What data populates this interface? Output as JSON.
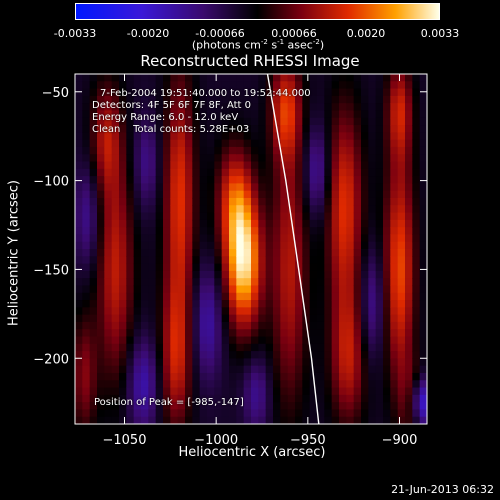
{
  "colorbar": {
    "ticks": [
      "-0.0033",
      "-0.0020",
      "-0.00066",
      "0.00066",
      "0.0020",
      "0.0033"
    ],
    "units_main": "(photons cm",
    "units_exp1": "-2",
    "units_s": " s",
    "units_exp2": "-1",
    "units_asec": " asec",
    "units_exp3": "-2",
    "units_close": ")"
  },
  "title": "Reconstructed RHESSI Image",
  "info": {
    "time": "7-Feb-2004 19:51:40.000 to 19:52:44.000",
    "detectors": "Detectors: 4F 5F 6F 7F 8F, Att 0",
    "energy": "Energy Range: 6.0 - 12.0 keV",
    "clean": "Clean    Total counts: 5.28E+03",
    "peak": "Position of Peak = [-985,-147]"
  },
  "footer": "21-Jun-2013 06:32",
  "chart_data": {
    "type": "heatmap",
    "title": "Reconstructed RHESSI Image",
    "xlabel": "Heliocentric X (arcsec)",
    "ylabel": "Heliocentric Y (arcsec)",
    "xlim": [
      -1077,
      -885
    ],
    "ylim": [
      -237,
      -40
    ],
    "xticks": [
      -1050,
      -1000,
      -950,
      -900
    ],
    "yticks": [
      -50,
      -100,
      -150,
      -200
    ],
    "colorbar_range": [
      -0.0033,
      0.0033
    ],
    "colormap": "blue-purple-black-red-yellow-white",
    "peak": {
      "x": -985,
      "y": -147
    },
    "limb_curve": [
      [
        -972,
        -40
      ],
      [
        -962,
        -100
      ],
      [
        -955,
        -150
      ],
      [
        -948,
        -200
      ],
      [
        -944,
        -237
      ]
    ],
    "sources": [
      {
        "x": -985,
        "y": -147,
        "value": 0.0033,
        "sx": 7,
        "sy": 26
      },
      {
        "x": -990,
        "y": -110,
        "value": 0.0018,
        "sx": 7,
        "sy": 22
      },
      {
        "x": -1020,
        "y": -110,
        "value": 0.002,
        "sx": 6,
        "sy": 50
      },
      {
        "x": -1022,
        "y": -200,
        "value": 0.0016,
        "sx": 6,
        "sy": 30
      },
      {
        "x": -1055,
        "y": -150,
        "value": 0.0017,
        "sx": 7,
        "sy": 45
      },
      {
        "x": -1060,
        "y": -75,
        "value": 0.0014,
        "sx": 6,
        "sy": 22
      },
      {
        "x": -1072,
        "y": -210,
        "value": 0.0012,
        "sx": 5,
        "sy": 25
      },
      {
        "x": -960,
        "y": -150,
        "value": 0.0016,
        "sx": 7,
        "sy": 55
      },
      {
        "x": -962,
        "y": -60,
        "value": 0.0018,
        "sx": 6,
        "sy": 20
      },
      {
        "x": -930,
        "y": -115,
        "value": 0.002,
        "sx": 7,
        "sy": 40
      },
      {
        "x": -928,
        "y": -200,
        "value": 0.0016,
        "sx": 7,
        "sy": 28
      },
      {
        "x": -900,
        "y": -150,
        "value": 0.0022,
        "sx": 6,
        "sy": 45
      },
      {
        "x": -900,
        "y": -60,
        "value": 0.0016,
        "sx": 5,
        "sy": 20
      },
      {
        "x": -893,
        "y": -225,
        "value": 0.0012,
        "sx": 5,
        "sy": 15
      },
      {
        "x": -1005,
        "y": -180,
        "value": -0.0012,
        "sx": 6,
        "sy": 22
      },
      {
        "x": -1040,
        "y": -215,
        "value": -0.0013,
        "sx": 6,
        "sy": 18
      },
      {
        "x": -1070,
        "y": -120,
        "value": -0.001,
        "sx": 5,
        "sy": 20
      },
      {
        "x": -945,
        "y": -95,
        "value": -0.0012,
        "sx": 5,
        "sy": 18
      },
      {
        "x": -915,
        "y": -170,
        "value": -0.0011,
        "sx": 5,
        "sy": 22
      },
      {
        "x": -888,
        "y": -225,
        "value": -0.0022,
        "sx": 5,
        "sy": 10
      },
      {
        "x": -1038,
        "y": -90,
        "value": -0.0009,
        "sx": 5,
        "sy": 18
      },
      {
        "x": -978,
        "y": -220,
        "value": -0.001,
        "sx": 5,
        "sy": 15
      }
    ]
  }
}
